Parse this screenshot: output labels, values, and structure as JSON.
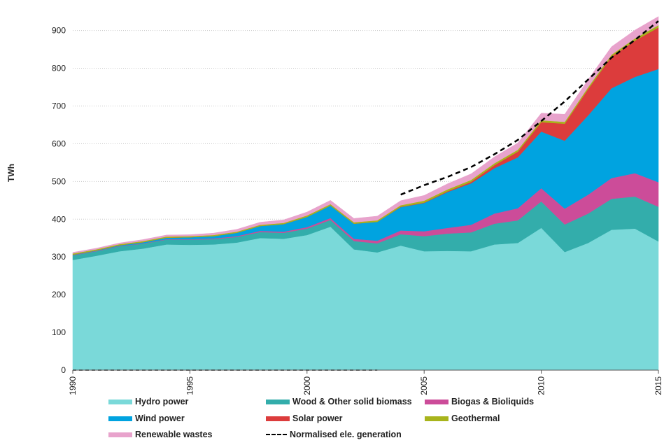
{
  "chart_data": {
    "type": "area",
    "stacked": true,
    "ylabel": "TWh",
    "xlabel": "",
    "ylim": [
      0,
      940
    ],
    "yticks": [
      0,
      100,
      200,
      300,
      400,
      500,
      600,
      700,
      800,
      900
    ],
    "xlim": [
      1990,
      2015
    ],
    "xticks": [
      1990,
      1995,
      2000,
      2005,
      2010,
      2015
    ],
    "grid": "horizontal dotted",
    "legend_position": "bottom",
    "x": [
      1990,
      1991,
      1992,
      1993,
      1994,
      1995,
      1996,
      1997,
      1998,
      1999,
      2000,
      2001,
      2002,
      2003,
      2004,
      2005,
      2006,
      2007,
      2008,
      2009,
      2010,
      2011,
      2012,
      2013,
      2014,
      2015
    ],
    "series": [
      {
        "name": "Hydro power",
        "color": "#7ad9d9",
        "values": [
          292,
          303,
          315,
          322,
          333,
          332,
          333,
          338,
          350,
          348,
          358,
          380,
          320,
          312,
          330,
          315,
          316,
          315,
          333,
          337,
          377,
          313,
          337,
          372,
          375,
          341
        ]
      },
      {
        "name": "Wood & Other solid biomass",
        "color": "#33adab",
        "values": [
          12,
          12,
          13,
          13,
          13,
          14,
          14,
          15,
          16,
          16,
          17,
          18,
          22,
          24,
          30,
          40,
          46,
          50,
          55,
          60,
          70,
          73,
          78,
          82,
          85,
          92
        ]
      },
      {
        "name": "Biogas & Bioliquids",
        "color": "#cc4c99",
        "values": [
          1,
          1,
          1,
          1,
          1,
          1,
          2,
          2,
          3,
          3,
          4,
          5,
          6,
          7,
          10,
          13,
          15,
          20,
          27,
          32,
          35,
          42,
          50,
          55,
          62,
          65
        ]
      },
      {
        "name": "Wind power",
        "color": "#00a3e0",
        "values": [
          1,
          1,
          2,
          3,
          4,
          5,
          6,
          9,
          13,
          20,
          27,
          33,
          40,
          50,
          62,
          75,
          95,
          110,
          120,
          135,
          150,
          180,
          210,
          238,
          255,
          300
        ]
      },
      {
        "name": "Solar power",
        "color": "#dc3c3c",
        "values": [
          0,
          0,
          0,
          0,
          0,
          0,
          0,
          0,
          0,
          0,
          0,
          0,
          0,
          0,
          1,
          1,
          2,
          4,
          8,
          15,
          25,
          45,
          70,
          84,
          96,
          110
        ]
      },
      {
        "name": "Geothermal",
        "color": "#a8b41c",
        "values": [
          3,
          3,
          3,
          3,
          3,
          3,
          3,
          3,
          3,
          3,
          4,
          4,
          4,
          4,
          4,
          5,
          5,
          5,
          5,
          5,
          5,
          5,
          5,
          5,
          6,
          6
        ]
      },
      {
        "name": "Renewable wastes",
        "color": "#e8a3cc",
        "values": [
          3,
          3,
          3,
          4,
          4,
          4,
          5,
          6,
          7,
          8,
          9,
          10,
          10,
          11,
          12,
          14,
          15,
          16,
          17,
          18,
          19,
          20,
          20,
          21,
          22,
          23
        ]
      }
    ],
    "line": {
      "name": "Normalised ele. generation",
      "style": "dashed",
      "color": "#000000",
      "x": [
        1990,
        1991,
        1992,
        1993,
        1994,
        1995,
        1996,
        1997,
        1998,
        1999,
        2000,
        2001,
        2002,
        2003,
        2004,
        2005,
        2006,
        2007,
        2008,
        2009,
        2010,
        2011,
        2012,
        2013,
        2014,
        2015
      ],
      "values": [
        0,
        0,
        0,
        0,
        0,
        0,
        0,
        0,
        0,
        0,
        0,
        0,
        0,
        0,
        465,
        490,
        512,
        538,
        572,
        610,
        660,
        712,
        770,
        828,
        875,
        925
      ]
    }
  }
}
